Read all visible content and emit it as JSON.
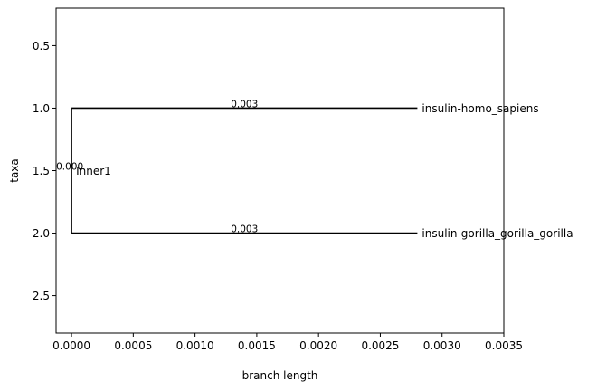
{
  "chart_data": {
    "type": "tree",
    "xlabel": "branch length",
    "ylabel": "taxa",
    "xlim": [
      -0.000125,
      0.0035
    ],
    "ylim": [
      2.8,
      0.2
    ],
    "xticks": [
      {
        "value": 0.0,
        "label": "0.0000"
      },
      {
        "value": 0.0005,
        "label": "0.0005"
      },
      {
        "value": 0.001,
        "label": "0.0010"
      },
      {
        "value": 0.0015,
        "label": "0.0015"
      },
      {
        "value": 0.002,
        "label": "0.0020"
      },
      {
        "value": 0.0025,
        "label": "0.0025"
      },
      {
        "value": 0.003,
        "label": "0.0030"
      },
      {
        "value": 0.0035,
        "label": "0.0035"
      }
    ],
    "yticks": [
      {
        "value": 0.5,
        "label": "0.5"
      },
      {
        "value": 1.0,
        "label": "1.0"
      },
      {
        "value": 1.5,
        "label": "1.5"
      },
      {
        "value": 2.0,
        "label": "2.0"
      },
      {
        "value": 2.5,
        "label": "2.5"
      }
    ],
    "internal_node": {
      "name": "Inner1",
      "x": 0.0,
      "y": 1.5,
      "branch_label": "0.000"
    },
    "clade_connector": {
      "x": 0.0,
      "y_from": 1.0,
      "y_to": 2.0
    },
    "leaves": [
      {
        "name": "insulin-homo_sapiens",
        "y": 1.0,
        "x_start": 0.0,
        "x_end": 0.0028,
        "branch_label": "0.003"
      },
      {
        "name": "insulin-gorilla_gorilla_gorilla",
        "y": 2.0,
        "x_start": 0.0,
        "x_end": 0.0028,
        "branch_label": "0.003"
      }
    ],
    "grid": false,
    "legend": "none"
  },
  "colors": {
    "line": "#000000",
    "text": "#000000",
    "background": "#ffffff"
  }
}
